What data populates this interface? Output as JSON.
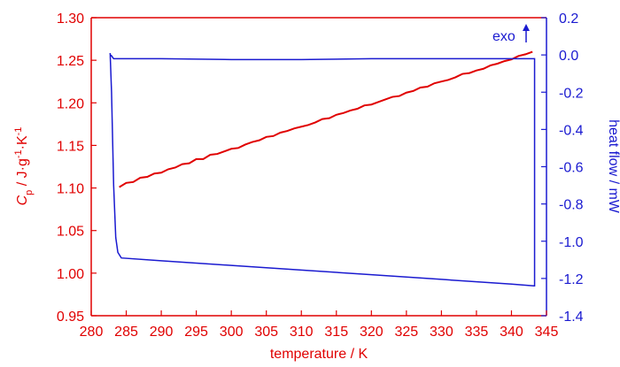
{
  "chart_data": {
    "type": "line",
    "x_label": "temperature / K",
    "y_label": [
      "C",
      "p",
      " / J·g",
      "-1",
      "·K",
      "-1"
    ],
    "y2_label": "heat flow / mW",
    "annotation": "exo",
    "xlim": [
      280,
      345
    ],
    "xticks": [
      280,
      285,
      290,
      295,
      300,
      305,
      310,
      315,
      320,
      325,
      330,
      335,
      340,
      345
    ],
    "ylim": [
      0.95,
      1.3
    ],
    "yticks": [
      0.95,
      {
        "value": 1,
        "label": "1.00"
      },
      1.05,
      {
        "value": 1.1,
        "label": "1.10"
      },
      1.15,
      {
        "value": 1.2,
        "label": "1.20"
      },
      1.25,
      {
        "value": 1.3,
        "label": "1.30"
      }
    ],
    "y2lim": [
      -1.4,
      0.2
    ],
    "y2ticks": [
      -1.4,
      -1.2,
      {
        "value": -1,
        "label": "-1.0"
      },
      -0.8,
      -0.6,
      -0.4,
      -0.2,
      {
        "value": 0,
        "label": "0.0"
      },
      0.2
    ],
    "left_color": "#e00000",
    "right_color": "#1a1ad0",
    "series": [
      {
        "color": "#e00000",
        "axis": "y",
        "x": [
          284,
          285,
          286,
          287,
          288,
          289,
          290,
          291,
          292,
          293,
          294,
          295,
          296,
          297,
          298,
          299,
          300,
          301,
          302,
          303,
          304,
          305,
          306,
          307,
          308,
          309,
          310,
          311,
          312,
          313,
          314,
          315,
          316,
          317,
          318,
          319,
          320,
          321,
          322,
          323,
          324,
          325,
          326,
          327,
          328,
          329,
          330,
          331,
          332,
          333,
          334,
          335,
          336,
          337,
          338,
          339,
          340,
          341,
          342,
          343
        ],
        "values": [
          1.101,
          1.106,
          1.107,
          1.112,
          1.113,
          1.117,
          1.118,
          1.122,
          1.124,
          1.128,
          1.129,
          1.134,
          1.134,
          1.139,
          1.14,
          1.143,
          1.146,
          1.147,
          1.151,
          1.154,
          1.156,
          1.16,
          1.161,
          1.165,
          1.167,
          1.17,
          1.172,
          1.174,
          1.177,
          1.181,
          1.182,
          1.186,
          1.188,
          1.191,
          1.193,
          1.197,
          1.198,
          1.201,
          1.204,
          1.207,
          1.208,
          1.212,
          1.214,
          1.218,
          1.219,
          1.223,
          1.225,
          1.227,
          1.23,
          1.234,
          1.235,
          1.238,
          1.24,
          1.244,
          1.246,
          1.249,
          1.251,
          1.255,
          1.257,
          1.26
        ]
      },
      {
        "color": "#1a1ad0",
        "axis": "y2",
        "x": [
          282.7,
          282.9,
          283.2,
          283.5,
          283.8,
          284.3,
          290,
          300,
          310,
          320,
          330,
          340,
          343.2,
          343.3,
          343.3,
          335,
          320,
          310,
          300,
          290,
          285,
          283.2,
          282.8
        ],
        "values": [
          0.01,
          -0.2,
          -0.7,
          -0.98,
          -1.06,
          -1.09,
          -1.105,
          -1.13,
          -1.155,
          -1.18,
          -1.205,
          -1.23,
          -1.24,
          -1.24,
          -0.02,
          -0.02,
          -0.02,
          -0.025,
          -0.025,
          -0.02,
          -0.02,
          -0.02,
          0
        ]
      }
    ]
  }
}
